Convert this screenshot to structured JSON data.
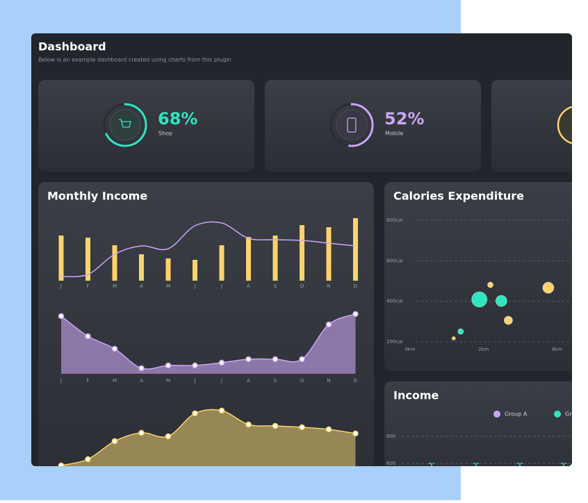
{
  "header": {
    "title": "Dashboard",
    "subtitle": "Below is an example dashboard created using charts from this plugin"
  },
  "stats": [
    {
      "value": 68,
      "value_label": "68%",
      "label": "Shop",
      "color": "#2ee6c0"
    },
    {
      "value": 52,
      "value_label": "52%",
      "label": "Mobile",
      "color": "#c9a6f5"
    }
  ],
  "chart_data": [
    {
      "type": "bar-line",
      "title": "Monthly Income",
      "categories": [
        "J",
        "F",
        "M",
        "A",
        "M",
        "J",
        "J",
        "A",
        "S",
        "O",
        "N",
        "D"
      ],
      "series": [
        {
          "type": "bar",
          "color": "#ffd36b",
          "values": [
            65,
            62,
            51,
            38,
            32,
            30,
            51,
            63,
            65,
            80,
            77,
            90
          ]
        },
        {
          "type": "line",
          "color": "#c9a6f5",
          "values": [
            6,
            9,
            38,
            50,
            46,
            79,
            83,
            61,
            59,
            58,
            54,
            50
          ]
        }
      ],
      "ylim": [
        0,
        100
      ]
    },
    {
      "type": "area",
      "categories": [
        "J",
        "F",
        "M",
        "A",
        "M",
        "J",
        "J",
        "A",
        "S",
        "O",
        "N",
        "D"
      ],
      "color": "#c9a6f5",
      "fill": "#8c77a8",
      "values": [
        83,
        54,
        36,
        8,
        12,
        12,
        16,
        21,
        21,
        21,
        71,
        86
      ],
      "ylim": [
        0,
        100
      ]
    },
    {
      "type": "area",
      "color": "#ffd36b",
      "fill": "#958856",
      "values": [
        30,
        39,
        65,
        77,
        72,
        105,
        109,
        89,
        87,
        85,
        82,
        76
      ],
      "ylim": [
        0,
        120
      ]
    },
    {
      "type": "scatter",
      "title": "Calories Expenditure",
      "series": [
        {
          "color": "#2ee6c0",
          "x": [
            1.89,
            2.49,
            1.38
          ],
          "values": [
            409,
            402,
            251
          ],
          "sizes": [
            11,
            8,
            4
          ]
        },
        {
          "color": "#ffd36b",
          "x": [
            2.19,
            3.77,
            2.68,
            1.19
          ],
          "values": [
            481,
            467,
            306,
            217
          ],
          "sizes": [
            4,
            8,
            6,
            2.5
          ]
        }
      ],
      "xlim": [
        0,
        4
      ],
      "ylim": [
        200,
        800
      ],
      "xticks": [
        {
          "value": 0,
          "label": "0km"
        },
        {
          "value": 2,
          "label": "2km"
        },
        {
          "value": 4,
          "label": "4km"
        }
      ],
      "yticks": [
        {
          "value": 200,
          "label": "200cal"
        },
        {
          "value": 400,
          "label": "400cal"
        },
        {
          "value": 600,
          "label": "600cal"
        },
        {
          "value": 800,
          "label": "800cal"
        }
      ],
      "grid": true
    },
    {
      "type": "legend-only",
      "title": "Income",
      "series": [
        {
          "name": "Group A",
          "color": "#c9a6f5"
        },
        {
          "name": "Group B",
          "color": "#2ee6c0"
        }
      ],
      "ylim": [
        600,
        800
      ],
      "yticks": [
        600,
        800
      ],
      "grid": true
    }
  ]
}
